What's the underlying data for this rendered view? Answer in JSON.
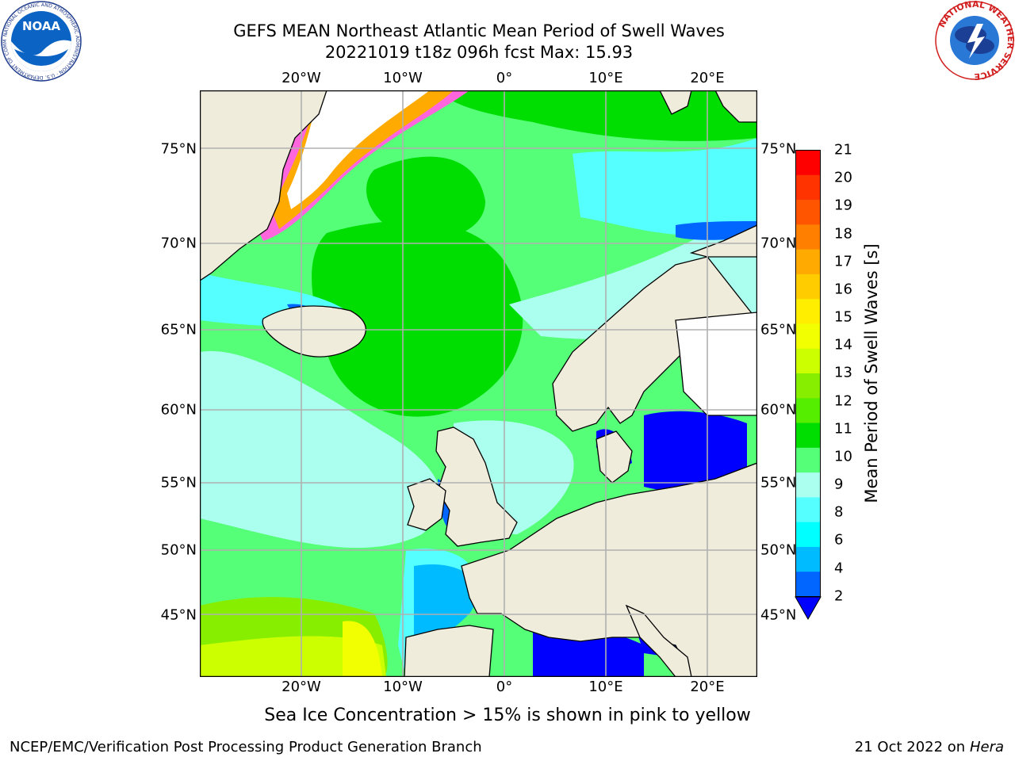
{
  "header": {
    "title_line1": "GEFS MEAN Northeast Atlantic Mean Period of Swell Waves",
    "title_line2": "20221019 t18z 096h fcst   Max: 15.93"
  },
  "logos": {
    "left": "NOAA",
    "left_ring": "NATIONAL OCEANIC AND ATMOSPHERIC ADMINISTRATION · U.S. DEPARTMENT OF COMMERCE",
    "right_ring": "NATIONAL WEATHER SERVICE"
  },
  "map": {
    "lon_ticks": [
      "20°W",
      "10°W",
      "0°",
      "10°E",
      "20°E"
    ],
    "lat_ticks": [
      "75°N",
      "70°N",
      "65°N",
      "60°N",
      "55°N",
      "50°N",
      "45°N"
    ],
    "colors": {
      "land": "#efecdc",
      "ice": "#ffffff",
      "coast": "#000000",
      "grid": "#b0b0b0"
    }
  },
  "colorbar": {
    "label": "Mean Period of Swell Waves [s]",
    "ticks": [
      "21",
      "20",
      "19",
      "18",
      "17",
      "16",
      "15",
      "14",
      "13",
      "12",
      "11",
      "10",
      "9",
      "8",
      "6",
      "4",
      "2"
    ],
    "colors": [
      "#ff0000",
      "#ff3300",
      "#ff5500",
      "#ff8000",
      "#ffaa00",
      "#ffcc00",
      "#ffee00",
      "#f2ff00",
      "#ccff00",
      "#88ee00",
      "#55ee00",
      "#00dd00",
      "#55ff77",
      "#aaffee",
      "#55ffff",
      "#00ffff",
      "#00bbff",
      "#0066ff"
    ],
    "under_color": "#0000ff"
  },
  "caption": "Sea Ice Concentration > 15% is shown in pink to yellow",
  "footer": {
    "left": "NCEP/EMC/Verification Post Processing Product Generation Branch",
    "right_date": "21 Oct 2022 on ",
    "right_host": "Hera"
  }
}
